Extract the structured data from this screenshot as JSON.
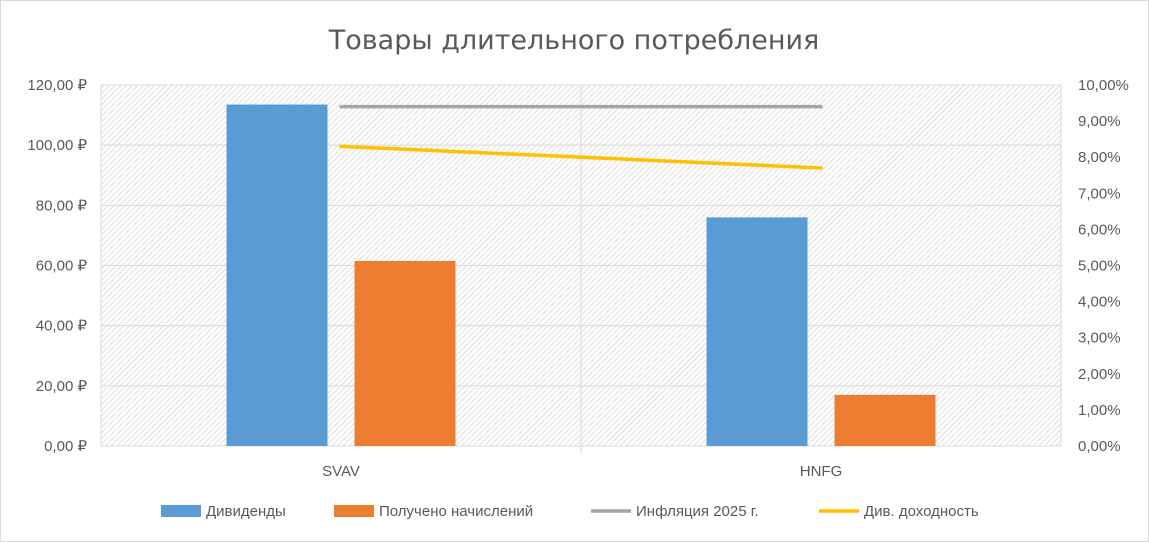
{
  "chart_data": {
    "type": "bar",
    "title": "Товары длительного потребления",
    "categories": [
      "SVAV",
      "HNFG"
    ],
    "series": [
      {
        "name": "Дивиденды",
        "kind": "bar",
        "axis": "left",
        "color": "#5b9bd5",
        "values": [
          113.5,
          76.0
        ]
      },
      {
        "name": "Получено начислений",
        "kind": "bar",
        "axis": "left",
        "color": "#ed7d31",
        "values": [
          61.5,
          17.0
        ]
      },
      {
        "name": "Инфляция 2025 г.",
        "kind": "line",
        "axis": "right",
        "color": "#a5a5a5",
        "values": [
          0.094,
          0.094
        ]
      },
      {
        "name": "Див. доходность",
        "kind": "line",
        "axis": "right",
        "color": "#ffc000",
        "values": [
          0.083,
          0.077
        ]
      }
    ],
    "y_left": {
      "min": 0,
      "max": 120,
      "ticks": [
        "0,00 ₽",
        "20,00 ₽",
        "40,00 ₽",
        "60,00 ₽",
        "80,00 ₽",
        "100,00 ₽",
        "120,00 ₽"
      ]
    },
    "y_right": {
      "min": 0,
      "max": 0.1,
      "ticks": [
        "0,00%",
        "1,00%",
        "2,00%",
        "3,00%",
        "4,00%",
        "5,00%",
        "6,00%",
        "7,00%",
        "8,00%",
        "9,00%",
        "10,00%"
      ]
    },
    "grid": true,
    "legend_position": "bottom"
  }
}
